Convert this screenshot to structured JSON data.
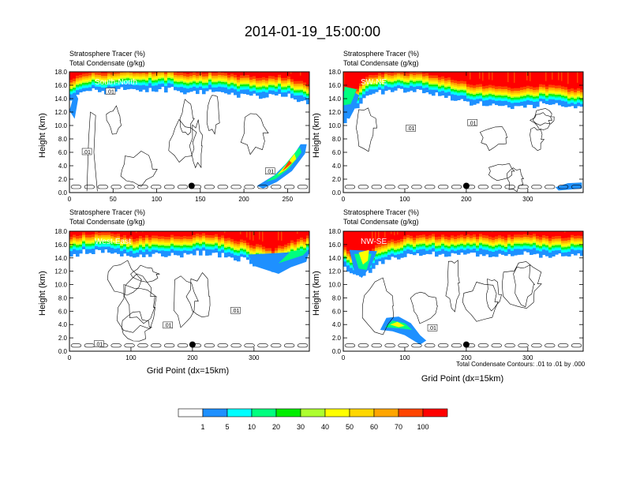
{
  "main_title": "2014-01-19_15:00:00",
  "chart_data": [
    {
      "type": "heatmap",
      "panel_name": "South-North",
      "title_lines": [
        "Stratosphere Tracer   (%)",
        "Total Condensate   (g/kg)"
      ],
      "xlabel": "",
      "ylabel": "Height (km)",
      "xlim": [
        0,
        275
      ],
      "ylim": [
        0,
        18
      ],
      "xticks": [
        0,
        50,
        100,
        150,
        200,
        250
      ],
      "yticks": [
        0.0,
        2.0,
        4.0,
        6.0,
        8.0,
        10.0,
        12.0,
        14.0,
        16.0,
        18.0
      ],
      "marker": {
        "x": 140,
        "y": 1.0
      },
      "contour_labels": [
        {
          "text": ".01",
          "x": 47,
          "y": 15.0
        },
        {
          "text": ".01",
          "x": 20,
          "y": 6.0
        },
        {
          "text": ".01",
          "x": 230,
          "y": 3.1
        }
      ],
      "tropopause": [
        [
          0,
          14.6
        ],
        [
          10,
          15.8
        ],
        [
          25,
          16.2
        ],
        [
          40,
          16.2
        ],
        [
          60,
          16.4
        ],
        [
          90,
          16.5
        ],
        [
          120,
          16.4
        ],
        [
          140,
          16.0
        ],
        [
          160,
          16.2
        ],
        [
          180,
          15.8
        ],
        [
          200,
          15.6
        ],
        [
          220,
          15.4
        ],
        [
          240,
          15.6
        ],
        [
          260,
          15.0
        ],
        [
          275,
          14.4
        ]
      ],
      "plumes": []
    },
    {
      "type": "heatmap",
      "panel_name": "SW-NE",
      "title_lines": [
        "Stratosphere Tracer   (%)",
        "Total Condensate   (g/kg)"
      ],
      "xlabel": "",
      "ylabel": "Height (km)",
      "xlim": [
        0,
        390
      ],
      "ylim": [
        0,
        18
      ],
      "xticks": [
        0,
        100,
        200,
        300
      ],
      "yticks": [
        0.0,
        2.0,
        4.0,
        6.0,
        8.0,
        10.0,
        12.0,
        14.0,
        16.0,
        18.0
      ],
      "marker": {
        "x": 200,
        "y": 1.0
      },
      "contour_labels": [
        {
          "text": ".01",
          "x": 110,
          "y": 9.5
        },
        {
          "text": ".01",
          "x": 210,
          "y": 10.3
        }
      ],
      "tropopause": [
        [
          0,
          11.5
        ],
        [
          15,
          13.0
        ],
        [
          40,
          15.6
        ],
        [
          80,
          16.2
        ],
        [
          120,
          16.1
        ],
        [
          160,
          15.5
        ],
        [
          200,
          14.6
        ],
        [
          230,
          14.2
        ],
        [
          260,
          14.0
        ],
        [
          290,
          13.8
        ],
        [
          320,
          14.2
        ],
        [
          350,
          14.0
        ],
        [
          390,
          13.5
        ]
      ],
      "plumes": []
    },
    {
      "type": "heatmap",
      "panel_name": "West-East",
      "title_lines": [
        "Stratosphere Tracer   (%)",
        "Total Condensate   (g/kg)"
      ],
      "xlabel": "Grid Point (dx=15km)",
      "ylabel": "Height (km)",
      "xlim": [
        0,
        390
      ],
      "ylim": [
        0,
        18
      ],
      "xticks": [
        0,
        100,
        200,
        300
      ],
      "yticks": [
        0.0,
        2.0,
        4.0,
        6.0,
        8.0,
        10.0,
        12.0,
        14.0,
        16.0,
        18.0
      ],
      "marker": {
        "x": 200,
        "y": 1.0
      },
      "contour_labels": [
        {
          "text": ".01",
          "x": 270,
          "y": 6.0
        },
        {
          "text": ".01",
          "x": 160,
          "y": 3.8
        },
        {
          "text": ".01",
          "x": 48,
          "y": 1.0
        }
      ],
      "tropopause": [
        [
          0,
          15.4
        ],
        [
          20,
          15.8
        ],
        [
          60,
          16.0
        ],
        [
          100,
          15.2
        ],
        [
          140,
          15.6
        ],
        [
          180,
          15.4
        ],
        [
          220,
          15.8
        ],
        [
          260,
          15.2
        ],
        [
          300,
          14.2
        ],
        [
          330,
          13.4
        ],
        [
          360,
          14.6
        ],
        [
          390,
          15.4
        ]
      ],
      "plumes": []
    },
    {
      "type": "heatmap",
      "panel_name": "NW-SE",
      "title_lines": [
        "Stratosphere Tracer   (%)",
        "Total Condensate   (g/kg)"
      ],
      "xlabel": "Grid Point (dx=15km)",
      "ylabel": "Height (km)",
      "xlim": [
        0,
        390
      ],
      "ylim": [
        0,
        18
      ],
      "xticks": [
        0,
        100,
        200,
        300
      ],
      "yticks": [
        0.0,
        2.0,
        4.0,
        6.0,
        8.0,
        10.0,
        12.0,
        14.0,
        16.0,
        18.0
      ],
      "marker": {
        "x": 200,
        "y": 1.0
      },
      "contour_labels": [
        {
          "text": ".01",
          "x": 145,
          "y": 3.4
        }
      ],
      "tropopause": [
        [
          0,
          14.0
        ],
        [
          15,
          12.6
        ],
        [
          30,
          12.0
        ],
        [
          60,
          14.4
        ],
        [
          100,
          15.4
        ],
        [
          140,
          15.6
        ],
        [
          180,
          15.4
        ],
        [
          220,
          15.6
        ],
        [
          260,
          15.4
        ],
        [
          300,
          15.8
        ],
        [
          340,
          15.2
        ],
        [
          390,
          15.6
        ]
      ],
      "plumes": []
    }
  ],
  "bottom_note": "Total Condensate Contours: .01 to .01 by .000",
  "colorbar": {
    "colors": [
      "#ffffff",
      "#1e90ff",
      "#00ffff",
      "#00ff7f",
      "#00ee00",
      "#adff2f",
      "#ffff00",
      "#ffd700",
      "#ffa500",
      "#ff4500",
      "#ff0000"
    ],
    "labels": [
      "1",
      "5",
      "10",
      "20",
      "30",
      "40",
      "50",
      "60",
      "70",
      "100"
    ]
  }
}
